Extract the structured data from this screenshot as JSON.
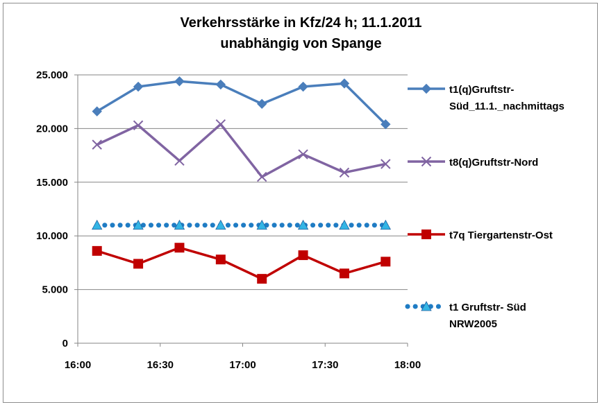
{
  "chart_data": {
    "type": "line",
    "title_line1": "Verkehrsstärke in Kfz/24 h; 11.1.2011",
    "title_line2": "unabhängig von Spange",
    "xlabel": "",
    "ylabel": "",
    "ylim": [
      0,
      25000
    ],
    "xlim": [
      "16:00",
      "18:00"
    ],
    "y_ticks": [
      {
        "value": 0,
        "label": "0"
      },
      {
        "value": 5000,
        "label": "5.000"
      },
      {
        "value": 10000,
        "label": "10.000"
      },
      {
        "value": 15000,
        "label": "15.000"
      },
      {
        "value": 20000,
        "label": "20.000"
      },
      {
        "value": 25000,
        "label": "25.000"
      }
    ],
    "x_ticks": [
      {
        "value": "16:00",
        "label": "16:00"
      },
      {
        "value": "16:30",
        "label": "16:30"
      },
      {
        "value": "17:00",
        "label": "17:00"
      },
      {
        "value": "17:30",
        "label": "17:30"
      },
      {
        "value": "18:00",
        "label": "18:00"
      }
    ],
    "grid": "horizontal",
    "legend_position": "right",
    "x": [
      "16:07",
      "16:22",
      "16:37",
      "16:52",
      "17:07",
      "17:22",
      "17:37",
      "17:52"
    ],
    "series": [
      {
        "name": "t1(q)Gruftstr-Süd_11.1._nachmittags",
        "legend_lines": [
          "t1(q)Gruftstr-",
          "Süd_11.1._nachmittags"
        ],
        "values": [
          21600,
          23900,
          24400,
          24100,
          22300,
          23900,
          24200,
          20400
        ],
        "color": "#4a7ebb",
        "marker": "diamond",
        "line_style": "solid"
      },
      {
        "name": "t8(q)Gruftstr-Nord",
        "legend_lines": [
          "t8(q)Gruftstr-Nord"
        ],
        "values": [
          18500,
          20300,
          17000,
          20400,
          15500,
          17600,
          15900,
          16700
        ],
        "color": "#8064a2",
        "marker": "x",
        "line_style": "solid"
      },
      {
        "name": "t7q Tiergartenstr-Ost",
        "legend_lines": [
          "t7q Tiergartenstr-Ost"
        ],
        "values": [
          8600,
          7400,
          8900,
          7800,
          6000,
          8200,
          6500,
          7600
        ],
        "color": "#c00000",
        "marker": "square",
        "line_style": "solid"
      },
      {
        "name": "t1 Gruftstr- Süd NRW2005",
        "legend_lines": [
          "t1 Gruftstr- Süd",
          "NRW2005"
        ],
        "values": [
          11000,
          11000,
          11000,
          11000,
          11000,
          11000,
          11000,
          11000
        ],
        "color": "#1f7cc4",
        "marker_color": "#33b5e5",
        "marker": "triangle",
        "line_style": "dotted"
      }
    ]
  }
}
